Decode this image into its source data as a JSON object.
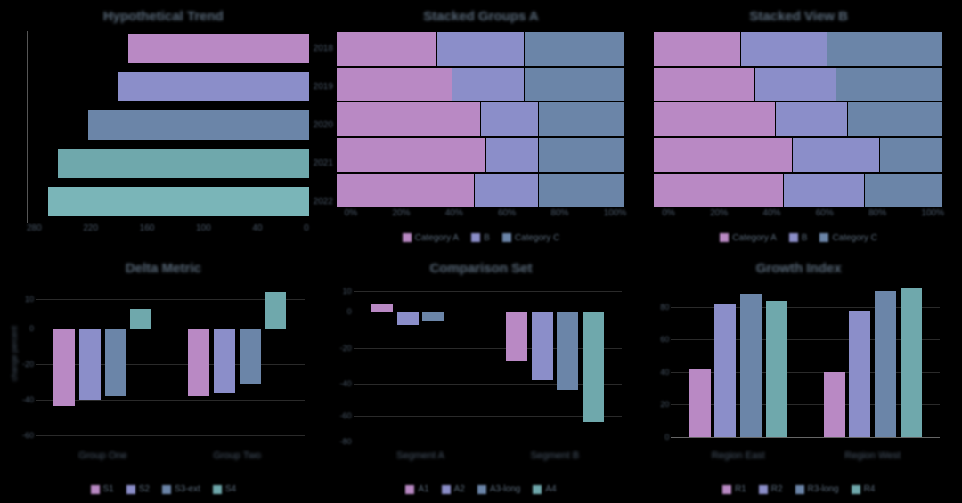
{
  "colors": {
    "c1": "#b989c4",
    "c2": "#8b8ec9",
    "c3": "#6b85a8",
    "c4": "#6fa8ac",
    "c5": "#7ab5b8",
    "bg": "#000000",
    "text": "#5a6a7a",
    "grid": "#2a2a2a",
    "axis": "#555555"
  },
  "panel1": {
    "title": "Hypothetical Trend",
    "type": "hbar-reversed",
    "bars": [
      {
        "label": "2018",
        "value": 180,
        "color": "#b989c4"
      },
      {
        "label": "2019",
        "value": 190,
        "color": "#8b8ec9"
      },
      {
        "label": "2020",
        "value": 220,
        "color": "#6b85a8"
      },
      {
        "label": "2021",
        "value": 250,
        "color": "#6fa8ac"
      },
      {
        "label": "2022",
        "value": 260,
        "color": "#7ab5b8"
      }
    ],
    "xmax": 280,
    "xticks": [
      "280",
      "220",
      "160",
      "100",
      "40",
      "0"
    ]
  },
  "panel2": {
    "title": "Stacked Groups A",
    "type": "stacked-hbar",
    "rows": [
      {
        "segs": [
          35,
          30,
          35
        ]
      },
      {
        "segs": [
          40,
          25,
          35
        ]
      },
      {
        "segs": [
          50,
          20,
          30
        ]
      },
      {
        "segs": [
          52,
          18,
          30
        ]
      },
      {
        "segs": [
          48,
          22,
          30
        ]
      }
    ],
    "colors": [
      "#b989c4",
      "#8b8ec9",
      "#6b85a8"
    ],
    "xticks": [
      "0%",
      "20%",
      "40%",
      "60%",
      "80%",
      "100%"
    ],
    "legend": [
      "Category A",
      "B",
      "Category C"
    ]
  },
  "panel3": {
    "title": "Stacked View B",
    "type": "stacked-hbar",
    "rows": [
      {
        "segs": [
          30,
          30,
          40
        ]
      },
      {
        "segs": [
          35,
          28,
          37
        ]
      },
      {
        "segs": [
          42,
          25,
          33
        ]
      },
      {
        "segs": [
          48,
          30,
          22
        ]
      },
      {
        "segs": [
          45,
          28,
          27
        ]
      }
    ],
    "colors": [
      "#b989c4",
      "#8b8ec9",
      "#6b85a8"
    ],
    "xticks": [
      "0%",
      "20%",
      "40%",
      "60%",
      "80%",
      "100%"
    ],
    "legend": [
      "Category A",
      "B",
      "Category C"
    ]
  },
  "panel4": {
    "title": "Delta Metric",
    "type": "grouped-vbar-diverging",
    "baseline_pct": 28,
    "ylabel": "change percent",
    "groups": [
      {
        "label": "Group One",
        "bars": [
          {
            "v": -48,
            "color": "#b989c4"
          },
          {
            "v": -44,
            "color": "#8b8ec9"
          },
          {
            "v": -42,
            "color": "#6b85a8"
          },
          {
            "v": 12,
            "color": "#6fa8ac"
          }
        ]
      },
      {
        "label": "Group Two",
        "bars": [
          {
            "v": -42,
            "color": "#b989c4"
          },
          {
            "v": -40,
            "color": "#8b8ec9"
          },
          {
            "v": -34,
            "color": "#6b85a8"
          },
          {
            "v": 22,
            "color": "#6fa8ac"
          }
        ]
      }
    ],
    "yticks": [
      {
        "pos": 10,
        "label": "10"
      },
      {
        "pos": 28,
        "label": "0"
      },
      {
        "pos": 50,
        "label": "-20"
      },
      {
        "pos": 72,
        "label": "-40"
      },
      {
        "pos": 94,
        "label": "-60"
      }
    ],
    "legend": [
      "S1",
      "S2",
      "S3-ext",
      "S4"
    ]
  },
  "panel5": {
    "title": "Comparison Set",
    "type": "grouped-vbar-diverging",
    "baseline_pct": 18,
    "groups": [
      {
        "label": "Segment A",
        "bars": [
          {
            "v": 5,
            "color": "#b989c4"
          },
          {
            "v": -8,
            "color": "#8b8ec9"
          },
          {
            "v": -6,
            "color": "#6b85a8"
          },
          {
            "v": 0,
            "color": "#6fa8ac"
          }
        ]
      },
      {
        "label": "Segment B",
        "bars": [
          {
            "v": -30,
            "color": "#b989c4"
          },
          {
            "v": -42,
            "color": "#8b8ec9"
          },
          {
            "v": -48,
            "color": "#6b85a8"
          },
          {
            "v": -68,
            "color": "#6fa8ac"
          }
        ]
      }
    ],
    "yticks": [
      {
        "pos": 5,
        "label": "10"
      },
      {
        "pos": 18,
        "label": "0"
      },
      {
        "pos": 40,
        "label": "-20"
      },
      {
        "pos": 62,
        "label": "-40"
      },
      {
        "pos": 82,
        "label": "-60"
      },
      {
        "pos": 98,
        "label": "-80"
      }
    ],
    "legend": [
      "A1",
      "A2",
      "A3-long",
      "A4"
    ]
  },
  "panel6": {
    "title": "Growth Index",
    "type": "grouped-vbar-up",
    "baseline_pct": 95,
    "groups": [
      {
        "label": "Region East",
        "bars": [
          {
            "v": 42,
            "color": "#b989c4"
          },
          {
            "v": 82,
            "color": "#8b8ec9"
          },
          {
            "v": 88,
            "color": "#6b85a8"
          },
          {
            "v": 84,
            "color": "#6fa8ac"
          }
        ]
      },
      {
        "label": "Region West",
        "bars": [
          {
            "v": 40,
            "color": "#b989c4"
          },
          {
            "v": 78,
            "color": "#8b8ec9"
          },
          {
            "v": 90,
            "color": "#6b85a8"
          },
          {
            "v": 92,
            "color": "#6fa8ac"
          }
        ]
      }
    ],
    "yticks": [
      {
        "pos": 15,
        "label": "80"
      },
      {
        "pos": 35,
        "label": "60"
      },
      {
        "pos": 55,
        "label": "40"
      },
      {
        "pos": 75,
        "label": "20"
      },
      {
        "pos": 95,
        "label": "0"
      }
    ],
    "legend": [
      "R1",
      "R2",
      "R3-long",
      "R4"
    ]
  }
}
